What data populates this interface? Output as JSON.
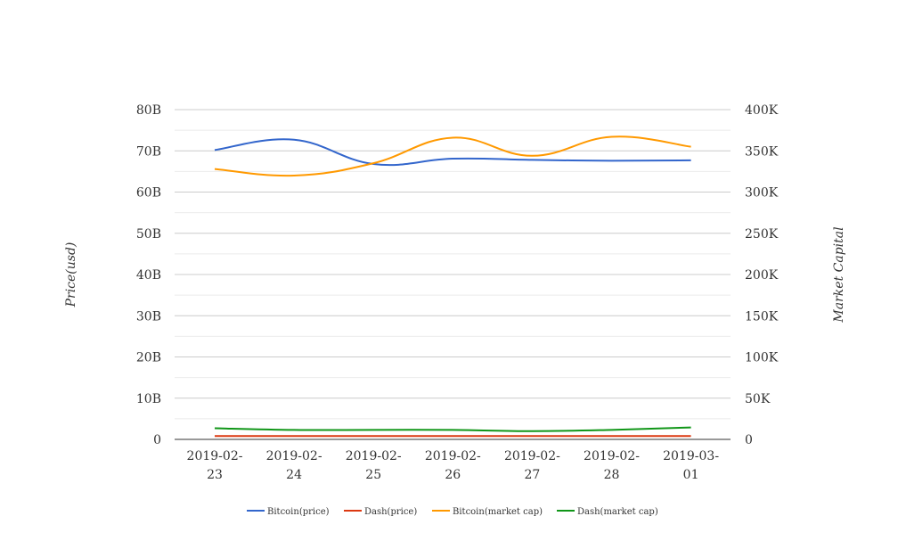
{
  "chart_data": {
    "type": "line",
    "categories": [
      "2019-02-23",
      "2019-02-24",
      "2019-02-25",
      "2019-02-26",
      "2019-02-27",
      "2019-02-28",
      "2019-03-01"
    ],
    "category_lines": [
      [
        "2019-02-",
        "23"
      ],
      [
        "2019-02-",
        "24"
      ],
      [
        "2019-02-",
        "25"
      ],
      [
        "2019-02-",
        "26"
      ],
      [
        "2019-02-",
        "27"
      ],
      [
        "2019-02-",
        "28"
      ],
      [
        "2019-03-",
        "01"
      ]
    ],
    "y_left": {
      "label": "Price(usd)",
      "ylim": [
        0,
        80000000000
      ],
      "ticks": [
        0,
        10000000000,
        20000000000,
        30000000000,
        40000000000,
        50000000000,
        60000000000,
        70000000000,
        80000000000
      ],
      "tick_labels": [
        "0",
        "10B",
        "20B",
        "30B",
        "40B",
        "50B",
        "60B",
        "70B",
        "80B"
      ]
    },
    "y_right": {
      "label": "Market Capital",
      "ylim": [
        0,
        400000
      ],
      "ticks": [
        0,
        50000,
        100000,
        150000,
        200000,
        250000,
        300000,
        350000,
        400000
      ],
      "tick_labels": [
        "0",
        "50K",
        "100K",
        "150K",
        "200K",
        "250K",
        "300K",
        "350K",
        "400K"
      ]
    },
    "grid": true,
    "legend_position": "bottom",
    "series": [
      {
        "name": "Bitcoin(price)",
        "axis": "left",
        "color": "#3366cc",
        "values": [
          70200000000,
          72700000000,
          66800000000,
          68100000000,
          67800000000,
          67600000000,
          67700000000
        ]
      },
      {
        "name": "Dash(price)",
        "axis": "left",
        "color": "#dc3912",
        "values": [
          800000000,
          800000000,
          800000000,
          800000000,
          800000000,
          800000000,
          800000000
        ]
      },
      {
        "name": "Bitcoin(market cap)",
        "axis": "right",
        "color": "#ff9900",
        "values": [
          328000,
          320000,
          335000,
          366000,
          344000,
          367000,
          355000
        ]
      },
      {
        "name": "Dash(market cap)",
        "axis": "right",
        "color": "#109618",
        "values": [
          13500,
          11500,
          11500,
          11500,
          10000,
          11500,
          14500
        ]
      }
    ]
  }
}
